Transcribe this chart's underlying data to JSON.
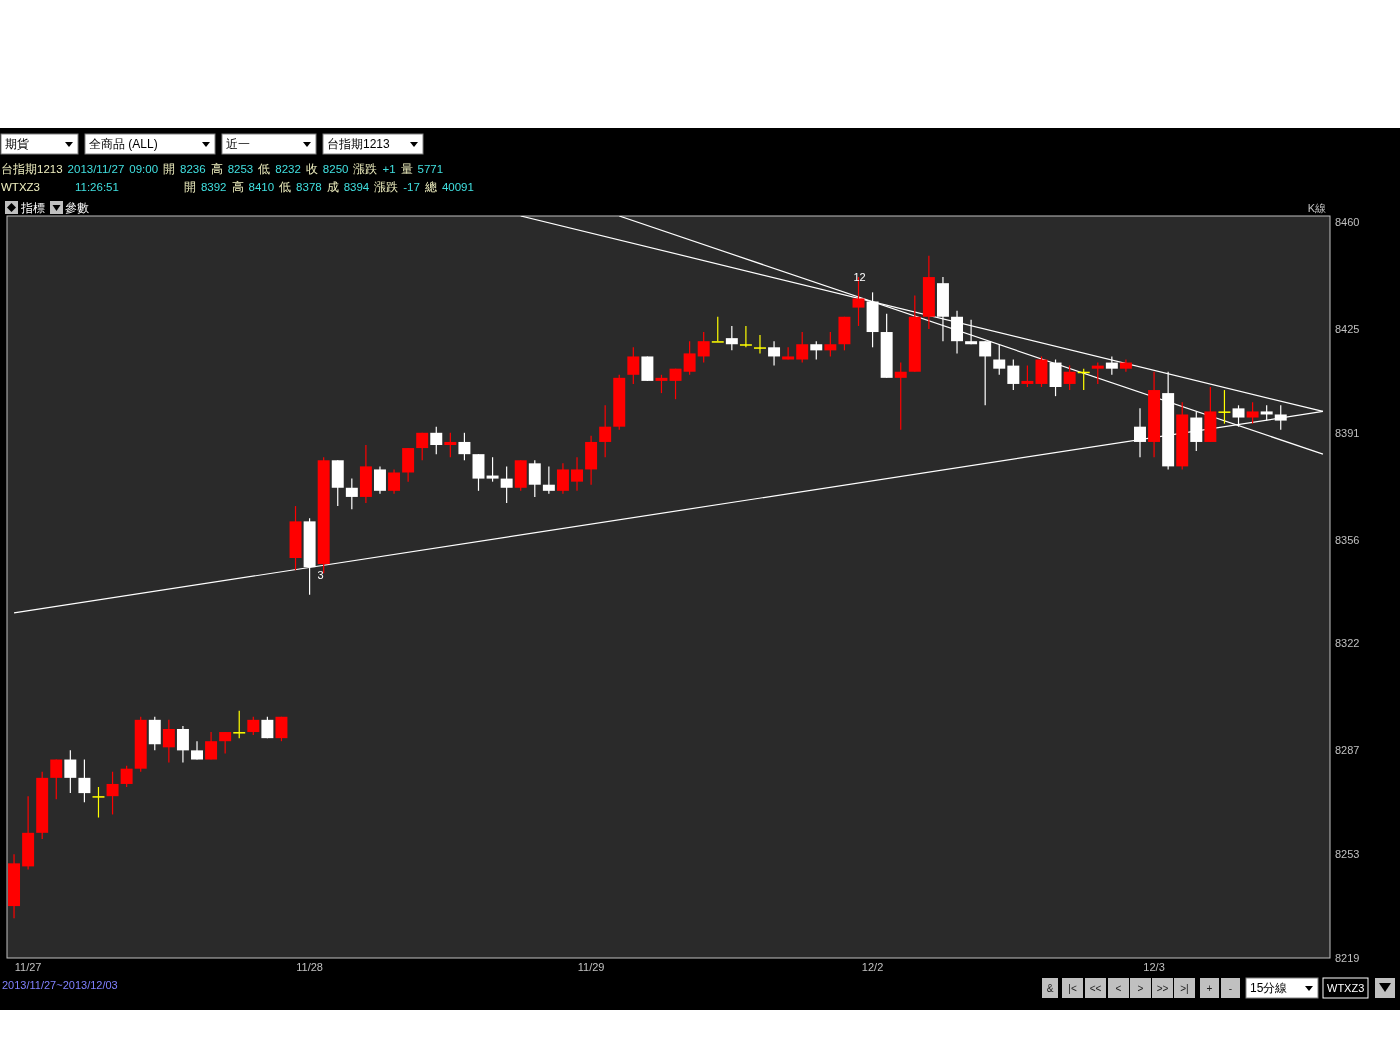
{
  "chart_data": {
    "type": "candlestick",
    "categories": [
      null,
      "11/27",
      null,
      null,
      null,
      null,
      null,
      null,
      null,
      null,
      null,
      null,
      null,
      null,
      null,
      null,
      null,
      null,
      null,
      null,
      null,
      "11/28",
      null,
      null,
      null,
      null,
      null,
      null,
      null,
      null,
      null,
      null,
      null,
      null,
      null,
      null,
      null,
      null,
      null,
      null,
      null,
      "11/29",
      null,
      null,
      null,
      null,
      null,
      null,
      null,
      null,
      null,
      null,
      null,
      null,
      null,
      null,
      null,
      null,
      null,
      null,
      null,
      "12/2",
      null,
      null,
      null,
      null,
      null,
      null,
      null,
      null,
      null,
      null,
      null,
      null,
      null,
      null,
      null,
      null,
      null,
      null,
      null,
      "12/3",
      null,
      null,
      null,
      null,
      null,
      null,
      null,
      null,
      null,
      null,
      null,
      null
    ],
    "ohlc": [
      [
        8236,
        8253,
        8232,
        8250
      ],
      [
        8249,
        8272,
        8248,
        8260
      ],
      [
        8260,
        8280,
        8258,
        8278
      ],
      [
        8278,
        8284,
        8271,
        8284
      ],
      [
        8284,
        8287,
        8273,
        8278
      ],
      [
        8278,
        8284,
        8270,
        8273
      ],
      [
        8272,
        8275,
        8265,
        8272
      ],
      [
        8272,
        8280,
        8266,
        8276
      ],
      [
        8276,
        8282,
        8275,
        8281
      ],
      [
        8281,
        8298,
        8280,
        8297
      ],
      [
        8297,
        8298,
        8287,
        8289
      ],
      [
        8288,
        8297,
        8283,
        8294
      ],
      [
        8294,
        8295,
        8283,
        8287
      ],
      [
        8287,
        8290,
        8284,
        8284
      ],
      [
        8284,
        8293,
        8284,
        8290
      ],
      [
        8290,
        8293,
        8286,
        8293
      ],
      [
        8293,
        8300,
        8291,
        8293
      ],
      [
        8293,
        8298,
        8292,
        8297
      ],
      [
        8297,
        8298,
        8291,
        8291
      ],
      [
        8291,
        8298,
        8290,
        8298
      ],
      [
        8350,
        8367,
        8346,
        8362
      ],
      [
        8362,
        8363,
        8338,
        8347
      ],
      [
        8348,
        8383,
        8345,
        8382
      ],
      [
        8382,
        8382,
        8367,
        8373
      ],
      [
        8373,
        8376,
        8366,
        8370
      ],
      [
        8370,
        8387,
        8368,
        8380
      ],
      [
        8379,
        8380,
        8371,
        8372
      ],
      [
        8372,
        8379,
        8371,
        8378
      ],
      [
        8378,
        8386,
        8375,
        8386
      ],
      [
        8386,
        8391,
        8382,
        8391
      ],
      [
        8391,
        8393,
        8384,
        8387
      ],
      [
        8387,
        8391,
        8383,
        8388
      ],
      [
        8388,
        8391,
        8382,
        8384
      ],
      [
        8384,
        8384,
        8372,
        8376
      ],
      [
        8377,
        8383,
        8375,
        8376
      ],
      [
        8376,
        8380,
        8368,
        8373
      ],
      [
        8373,
        8382,
        8372,
        8382
      ],
      [
        8381,
        8382,
        8370,
        8374
      ],
      [
        8374,
        8380,
        8371,
        8372
      ],
      [
        8372,
        8381,
        8371,
        8379
      ],
      [
        8375,
        8383,
        8372,
        8379
      ],
      [
        8379,
        8390,
        8374,
        8388
      ],
      [
        8388,
        8400,
        8383,
        8393
      ],
      [
        8393,
        8410,
        8392,
        8409
      ],
      [
        8410,
        8419,
        8407,
        8416
      ],
      [
        8416,
        8416,
        8408,
        8408
      ],
      [
        8408,
        8410,
        8404,
        8409
      ],
      [
        8408,
        8412,
        8402,
        8412
      ],
      [
        8411,
        8421,
        8410,
        8417
      ],
      [
        8416,
        8424,
        8414,
        8421
      ],
      [
        8421,
        8429,
        8421,
        8421
      ],
      [
        8422,
        8426,
        8418,
        8420
      ],
      [
        8420,
        8426,
        8419,
        8420
      ],
      [
        8419,
        8423,
        8417,
        8419
      ],
      [
        8419,
        8421,
        8413,
        8416
      ],
      [
        8415,
        8419,
        8415,
        8416
      ],
      [
        8415,
        8424,
        8414,
        8420
      ],
      [
        8420,
        8421,
        8415,
        8418
      ],
      [
        8418,
        8424,
        8416,
        8420
      ],
      [
        8420,
        8429,
        8418,
        8429
      ],
      [
        8432,
        8442,
        8426,
        8435
      ],
      [
        8434,
        8437,
        8419,
        8424
      ],
      [
        8424,
        8430,
        8409,
        8409
      ],
      [
        8409,
        8414,
        8392,
        8411
      ],
      [
        8411,
        8436,
        8411,
        8429
      ],
      [
        8429,
        8449,
        8425,
        8442
      ],
      [
        8440,
        8442,
        8421,
        8429
      ],
      [
        8429,
        8431,
        8417,
        8421
      ],
      [
        8421,
        8428,
        8420,
        8420
      ],
      [
        8421,
        8421,
        8400,
        8416
      ],
      [
        8415,
        8420,
        8410,
        8412
      ],
      [
        8413,
        8415,
        8405,
        8407
      ],
      [
        8407,
        8413,
        8406,
        8408
      ],
      [
        8407,
        8416,
        8406,
        8415
      ],
      [
        8414,
        8415,
        8403,
        8406
      ],
      [
        8407,
        8413,
        8405,
        8411
      ],
      [
        8411,
        8412,
        8405,
        8411
      ],
      [
        8412,
        8414,
        8407,
        8413
      ],
      [
        8414,
        8416,
        8410,
        8412
      ],
      [
        8412,
        8415,
        8411,
        8414
      ],
      [
        8393,
        8399,
        8383,
        8388
      ],
      [
        8388,
        8411,
        8383,
        8405
      ],
      [
        8404,
        8411,
        8379,
        8380
      ],
      [
        8380,
        8401,
        8379,
        8397
      ],
      [
        8396,
        8398,
        8385,
        8388
      ],
      [
        8388,
        8406,
        8388,
        8398
      ],
      [
        8398,
        8405,
        8394,
        8398
      ],
      [
        8399,
        8400,
        8393,
        8396
      ],
      [
        8396,
        8401,
        8394,
        8398
      ],
      [
        8398,
        8400,
        8395,
        8397
      ],
      [
        8397,
        8400,
        8392,
        8395
      ],
      null,
      null,
      null
    ],
    "colors": [
      "#ff0000",
      "#ff0000",
      "#ff0000",
      "#ff0000",
      "#ffffff",
      "#ffffff",
      "#ffff00",
      "#ff0000",
      "#ff0000",
      "#ff0000",
      "#ffffff",
      "#ff0000",
      "#ffffff",
      "#ffffff",
      "#ff0000",
      "#ff0000",
      "#ffff00",
      "#ff0000",
      "#ffffff",
      "#ff0000",
      "#ff0000",
      "#ffffff",
      "#ff0000",
      "#ffffff",
      "#ffffff",
      "#ff0000",
      "#ffffff",
      "#ff0000",
      "#ff0000",
      "#ff0000",
      "#ffffff",
      "#ff0000",
      "#ffffff",
      "#ffffff",
      "#ffffff",
      "#ffffff",
      "#ff0000",
      "#ffffff",
      "#ffffff",
      "#ff0000",
      "#ff0000",
      "#ff0000",
      "#ff0000",
      "#ff0000",
      "#ff0000",
      "#ffffff",
      "#ff0000",
      "#ff0000",
      "#ff0000",
      "#ff0000",
      "#ffff00",
      "#ffffff",
      "#ffff00",
      "#ffff00",
      "#ffffff",
      "#ff0000",
      "#ff0000",
      "#ffffff",
      "#ff0000",
      "#ff0000",
      "#ff0000",
      "#ffffff",
      "#ffffff",
      "#ff0000",
      "#ff0000",
      "#ff0000",
      "#ffffff",
      "#ffffff",
      "#ffffff",
      "#ffffff",
      "#ffffff",
      "#ffffff",
      "#ff0000",
      "#ff0000",
      "#ffffff",
      "#ff0000",
      "#ffff00",
      "#ff0000",
      "#ffffff",
      "#ff0000",
      "#ffffff",
      "#ff0000",
      "#ffffff",
      "#ff0000",
      "#ffffff",
      "#ff0000",
      "#ffff00",
      "#ffffff",
      "#ff0000",
      "#ffffff",
      "#ffffff",
      null,
      null,
      null
    ],
    "series": [
      {
        "type": "line",
        "color": "#ffffff",
        "values": [
          8332,
          null,
          null,
          null,
          null,
          null,
          null,
          null,
          null,
          null,
          null,
          null,
          null,
          null,
          null,
          null,
          null,
          null,
          null,
          null,
          null,
          null,
          null,
          null,
          null,
          null,
          null,
          null,
          null,
          null,
          null,
          null,
          null,
          null,
          null,
          null,
          null,
          null,
          null,
          null,
          null,
          null,
          null,
          null,
          null,
          null,
          null,
          null,
          null,
          null,
          null,
          null,
          null,
          null,
          null,
          null,
          null,
          null,
          null,
          null,
          null,
          null,
          null,
          null,
          null,
          null,
          null,
          null,
          null,
          null,
          null,
          null,
          null,
          null,
          null,
          null,
          null,
          null,
          null,
          null,
          null,
          null,
          null,
          null,
          null,
          null,
          null,
          null,
          null,
          null,
          null,
          null,
          null,
          8398
        ]
      },
      {
        "type": "line",
        "color": "#ffffff",
        "values": [
          null,
          null,
          null,
          null,
          null,
          null,
          null,
          null,
          null,
          null,
          null,
          null,
          null,
          null,
          null,
          null,
          null,
          null,
          null,
          null,
          null,
          null,
          null,
          null,
          null,
          null,
          null,
          null,
          null,
          null,
          null,
          null,
          null,
          null,
          null,
          null,
          8462,
          null,
          null,
          null,
          null,
          null,
          null,
          null,
          null,
          null,
          null,
          null,
          null,
          null,
          null,
          null,
          null,
          null,
          null,
          null,
          null,
          null,
          null,
          null,
          null,
          null,
          null,
          null,
          null,
          null,
          null,
          null,
          null,
          null,
          null,
          null,
          null,
          null,
          null,
          null,
          null,
          null,
          null,
          null,
          null,
          null,
          null,
          null,
          null,
          null,
          null,
          null,
          null,
          null,
          null,
          null,
          null,
          8398
        ]
      },
      {
        "type": "line",
        "color": "#ffffff",
        "values": [
          null,
          null,
          null,
          null,
          null,
          null,
          null,
          null,
          null,
          null,
          null,
          null,
          null,
          null,
          null,
          null,
          null,
          null,
          null,
          null,
          null,
          null,
          null,
          null,
          null,
          null,
          null,
          null,
          null,
          null,
          null,
          null,
          null,
          null,
          null,
          null,
          null,
          null,
          null,
          null,
          null,
          null,
          null,
          8462,
          null,
          null,
          null,
          null,
          null,
          null,
          null,
          null,
          null,
          null,
          null,
          null,
          null,
          null,
          null,
          null,
          null,
          null,
          null,
          null,
          null,
          null,
          null,
          null,
          null,
          null,
          null,
          null,
          null,
          null,
          null,
          null,
          null,
          null,
          null,
          null,
          null,
          null,
          null,
          null,
          null,
          null,
          null,
          null,
          null,
          null,
          null,
          null,
          null,
          8384
        ]
      }
    ],
    "ylim": [
      8219,
      8462
    ],
    "yticks": [
      8219,
      8253,
      8287,
      8322,
      8356,
      8391,
      8425,
      8460
    ],
    "annotations": [
      "期貨",
      "全商品    (ALL)",
      "近一",
      "台指期1213",
      "台指期1213 2013/11/27 09:00 開 8236 高 8253 低 8232 收 8250 漲跌 +1 量 5771",
      "WTXZ3 11:26:51 開 8392 高 8410 低 8378 成 8394 漲跌 -17 總 40091",
      "指標",
      "參數",
      "K線",
      "2013/11/27~2013/12/03",
      "&",
      "|<",
      "<<",
      "<",
      ">",
      ">>",
      ">|",
      "+",
      "-",
      "15分線",
      "WTXZ3",
      "12",
      "3"
    ]
  }
}
